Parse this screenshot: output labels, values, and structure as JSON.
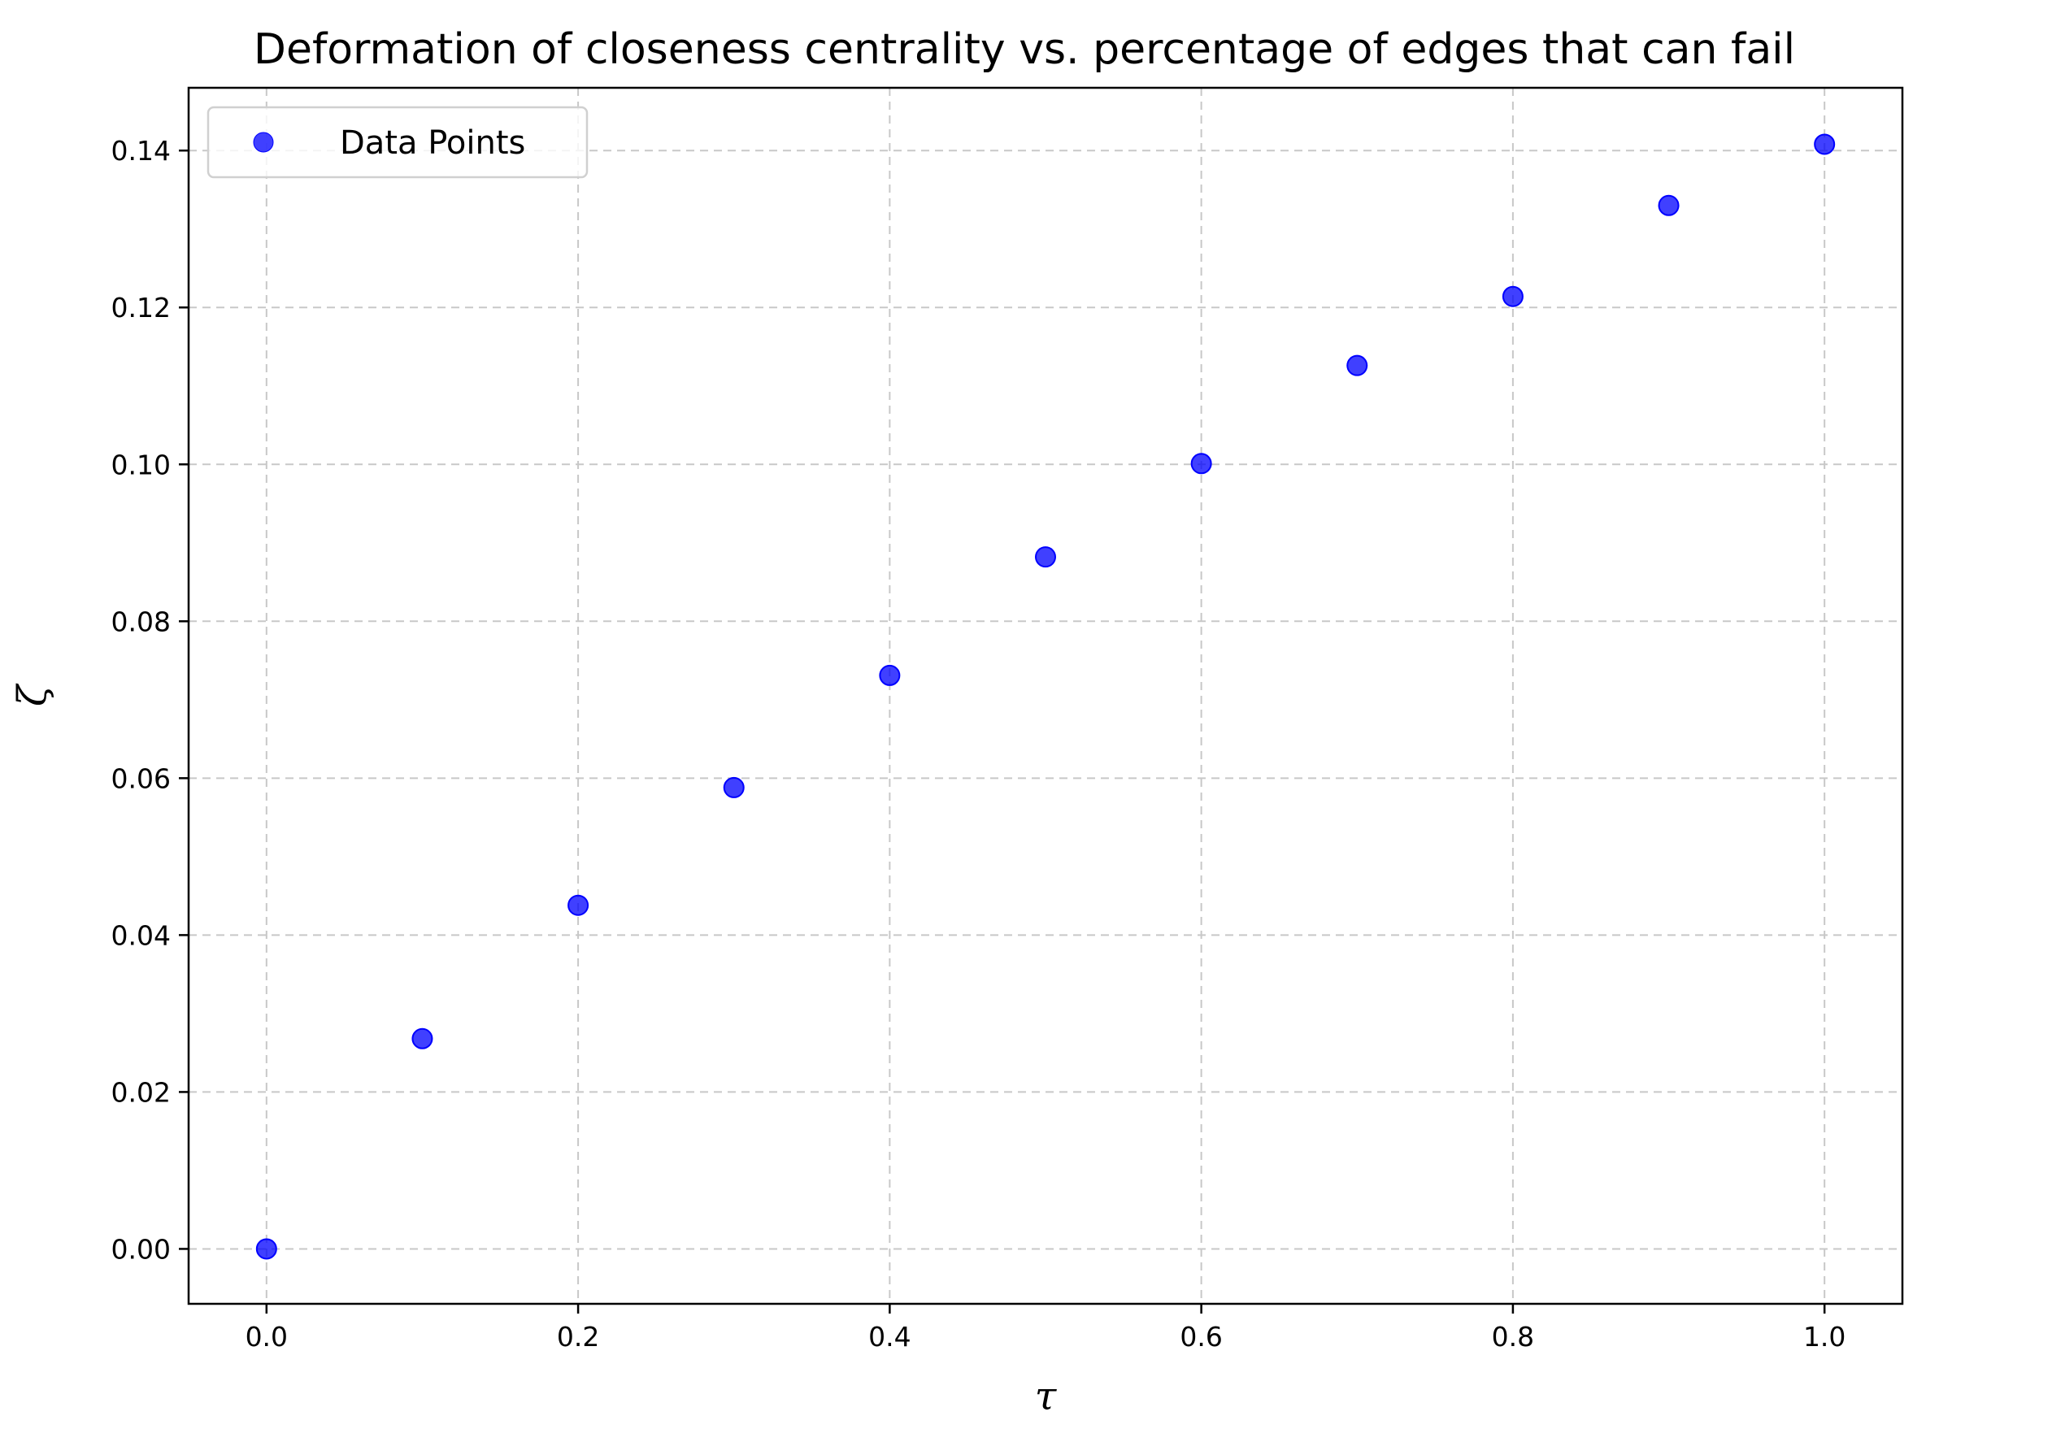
{
  "chart_data": {
    "type": "scatter",
    "title": "Deformation of closeness centrality vs. percentage of edges that can fail",
    "xlabel": "τ",
    "ylabel": "ζ",
    "xlim": [
      -0.05,
      1.05
    ],
    "ylim": [
      -0.007,
      0.148
    ],
    "xticks": [
      0.0,
      0.2,
      0.4,
      0.6,
      0.8,
      1.0
    ],
    "xtick_labels": [
      "0.0",
      "0.2",
      "0.4",
      "0.6",
      "0.8",
      "1.0"
    ],
    "yticks": [
      0.0,
      0.02,
      0.04,
      0.06,
      0.08,
      0.1,
      0.12,
      0.14
    ],
    "ytick_labels": [
      "0.00",
      "0.02",
      "0.04",
      "0.06",
      "0.08",
      "0.10",
      "0.12",
      "0.14"
    ],
    "grid": true,
    "legend_position": "top-left",
    "series": [
      {
        "name": "Data Points",
        "color": "#0000ff",
        "x": [
          0.0,
          0.1,
          0.2,
          0.3,
          0.4,
          0.5,
          0.6,
          0.7,
          0.8,
          0.9,
          1.0
        ],
        "y": [
          0.0,
          0.0268,
          0.0438,
          0.0588,
          0.0731,
          0.0882,
          0.1001,
          0.1126,
          0.1214,
          0.133,
          0.1408
        ]
      }
    ]
  }
}
